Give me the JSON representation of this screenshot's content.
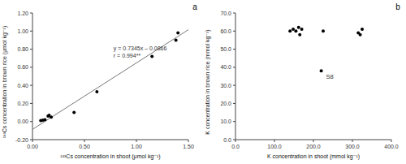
{
  "chart_data": [
    {
      "type": "scatter",
      "title": "a",
      "x_label": "¹³³Cs concentration in shoot (μmol kg⁻¹)",
      "y_label": "¹³³Cs concentration in brown rice (μmol kg⁻¹)",
      "series": [
        {
          "type": "scatter",
          "color": "#000000",
          "x": [
            0.08,
            0.1,
            0.12,
            0.15,
            0.16,
            0.18,
            0.4,
            0.62,
            1.15,
            1.38,
            1.4
          ],
          "values": [
            0.01,
            0.015,
            0.02,
            0.06,
            0.07,
            0.05,
            0.1,
            0.33,
            0.72,
            0.9,
            0.98
          ]
        },
        {
          "type": "line",
          "color": "#777777",
          "x": [
            0.0,
            1.5
          ],
          "values": [
            -0.0866,
            1.01515
          ]
        }
      ],
      "annotations": [
        "y = 0.7345x – 0.0866",
        "r = 0.994**"
      ],
      "xlim": [
        0.0,
        1.5
      ],
      "ylim": [
        -0.2,
        1.2
      ],
      "xticks": [
        {
          "value": 0,
          "label": "0.00"
        },
        {
          "value": 0.5,
          "label": "0.50"
        },
        {
          "value": 1,
          "label": "1.00"
        },
        {
          "value": 1.5,
          "label": "1.50"
        }
      ],
      "yticks": [
        {
          "value": -0.2,
          "label": "-0.20"
        },
        {
          "value": 0,
          "label": "0.00"
        },
        {
          "value": 0.2,
          "label": "0.20"
        },
        {
          "value": 0.4,
          "label": "0.40"
        },
        {
          "value": 0.6,
          "label": "0.60"
        },
        {
          "value": 0.8,
          "label": "0.80"
        },
        {
          "value": 1,
          "label": "1.00"
        },
        {
          "value": 1.2,
          "label": "1.20"
        }
      ],
      "grid": false
    },
    {
      "type": "scatter",
      "title": "b",
      "x_label": "K concentration in shoot (mmol kg⁻¹)",
      "y_label": "K concentration in brown rice (mmol kg⁻¹)",
      "series": [
        {
          "type": "scatter",
          "color": "#000000",
          "x": [
            140,
            148,
            155,
            162,
            165,
            170,
            220,
            225,
            315,
            320,
            325
          ],
          "values": [
            60,
            61,
            60,
            62,
            58,
            61,
            38,
            60,
            59,
            58,
            61
          ]
        }
      ],
      "annotations": [
        {
          "text": "S8",
          "x": 220,
          "y": 38
        }
      ],
      "xlim": [
        0.0,
        400.0
      ],
      "ylim": [
        0.0,
        70.0
      ],
      "xticks": [
        {
          "value": 0,
          "label": "0.0"
        },
        {
          "value": 100,
          "label": "100.0"
        },
        {
          "value": 200,
          "label": "200.0"
        },
        {
          "value": 300,
          "label": "300.0"
        },
        {
          "value": 400,
          "label": "400.0"
        }
      ],
      "yticks": [
        {
          "value": 0,
          "label": "0.0"
        },
        {
          "value": 10,
          "label": "10.0"
        },
        {
          "value": 20,
          "label": "20.0"
        },
        {
          "value": 30,
          "label": "30.0"
        },
        {
          "value": 40,
          "label": "40.0"
        },
        {
          "value": 50,
          "label": "50.0"
        },
        {
          "value": 60,
          "label": "60.0"
        },
        {
          "value": 70,
          "label": "70.0"
        }
      ],
      "grid": false
    }
  ]
}
